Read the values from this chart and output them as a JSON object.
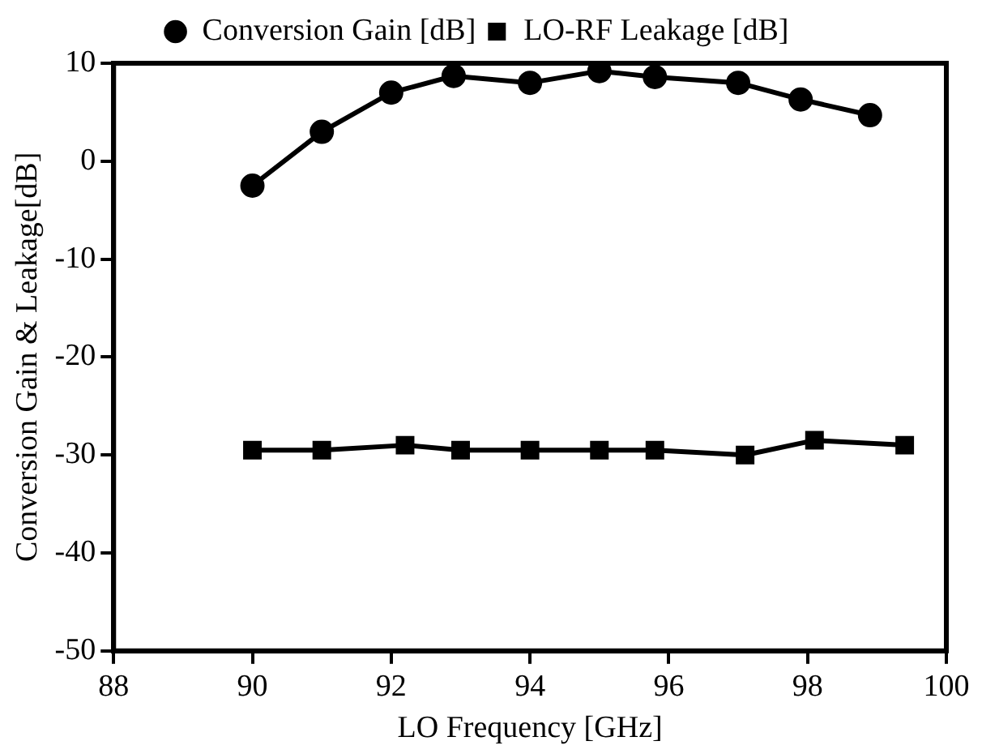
{
  "chart_data": {
    "type": "line",
    "xlabel": "LO Frequency [GHz]",
    "ylabel": "Conversion Gain & Leakage[dB]",
    "xlim": [
      88,
      100
    ],
    "xticks": [
      88,
      90,
      92,
      94,
      96,
      98,
      100
    ],
    "ylim": [
      -50,
      10
    ],
    "yticks": [
      -50,
      -40,
      -30,
      -20,
      -10,
      0,
      10
    ],
    "grid": false,
    "legend": "top",
    "line_style": "solid",
    "series": [
      {
        "name": "Conversion Gain [dB]",
        "color": "#000000",
        "marker": "circle",
        "x": [
          90,
          91,
          92,
          92.9,
          94,
          95,
          95.8,
          97,
          97.9,
          98.9
        ],
        "values": [
          -2.5,
          3,
          7,
          8.7,
          8,
          9.2,
          8.6,
          8,
          6.3,
          4.7
        ]
      },
      {
        "name": "LO-RF Leakage [dB]",
        "color": "#000000",
        "marker": "square",
        "x": [
          90,
          91,
          92.2,
          93,
          94,
          95,
          95.8,
          97.1,
          98.1,
          99.4
        ],
        "values": [
          -29.5,
          -29.5,
          -29,
          -29.5,
          -29.5,
          -29.5,
          -29.5,
          -30,
          -28.5,
          -29
        ]
      }
    ]
  }
}
